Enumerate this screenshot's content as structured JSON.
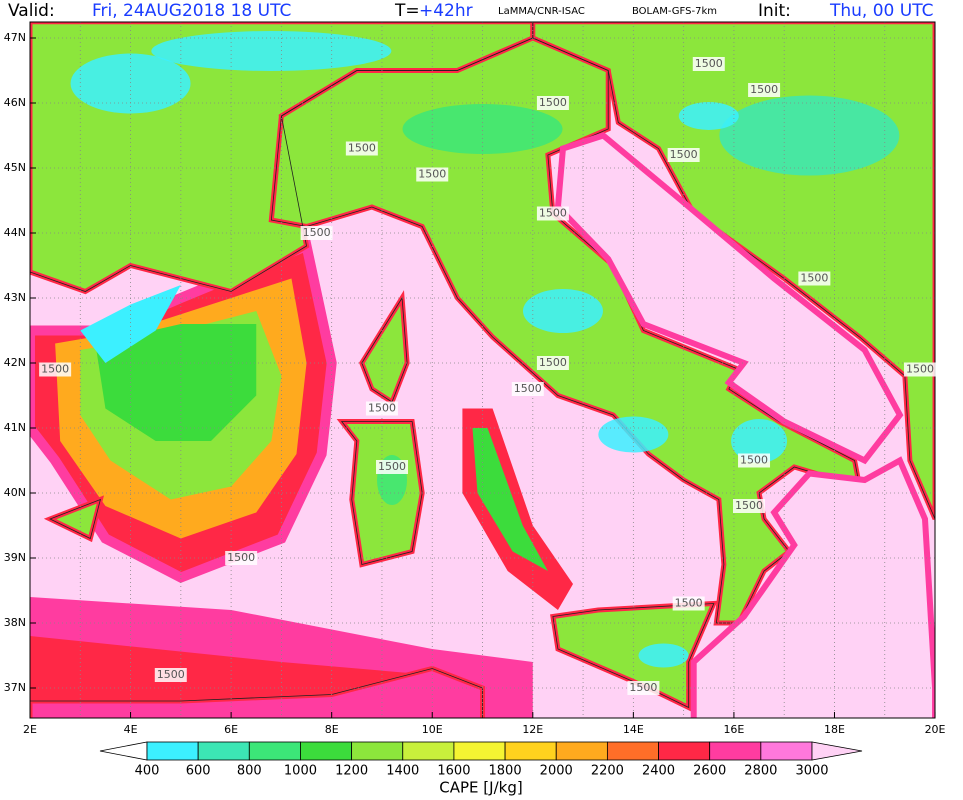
{
  "header": {
    "valid_label": "Valid:",
    "valid": "Fri, 24AUG2018  18 UTC",
    "step_label": "T=",
    "step": "+42hr",
    "source": "LaMMA/CNR-ISAC",
    "model": "BOLAM-GFS-7km",
    "init_label": "Init:",
    "init": "Thu, 00 UTC"
  },
  "map": {
    "lat_labels": [
      "47N",
      "46N",
      "45N",
      "44N",
      "43N",
      "42N",
      "41N",
      "40N",
      "39N",
      "38N",
      "37N"
    ],
    "lon_labels": [
      "2E",
      "4E",
      "6E",
      "8E",
      "10E",
      "12E",
      "14E",
      "16E",
      "18E",
      "20E"
    ],
    "contour_labels": [
      1500,
      1500,
      1500,
      1500,
      1500,
      1500,
      1500,
      1500,
      1500,
      1500,
      1500,
      1500,
      1500,
      1500,
      1500,
      1500,
      1500,
      1500,
      1500,
      1500,
      1500
    ]
  },
  "colorbar": {
    "title": "CAPE [J/kg]",
    "labels": [
      400,
      600,
      800,
      1000,
      1200,
      1400,
      1600,
      1800,
      2000,
      2200,
      2400,
      2600,
      2800,
      3000
    ],
    "colors": [
      "#ffffff",
      "#3cf0ff",
      "#3ce6b4",
      "#3ce678",
      "#3cdc3c",
      "#8ce63c",
      "#c8f03c",
      "#f5f532",
      "#ffd21e",
      "#ffaa1e",
      "#ff6e28",
      "#ff2846",
      "#ff3ca0",
      "#ff78dc",
      "#ffd2f5"
    ]
  }
}
